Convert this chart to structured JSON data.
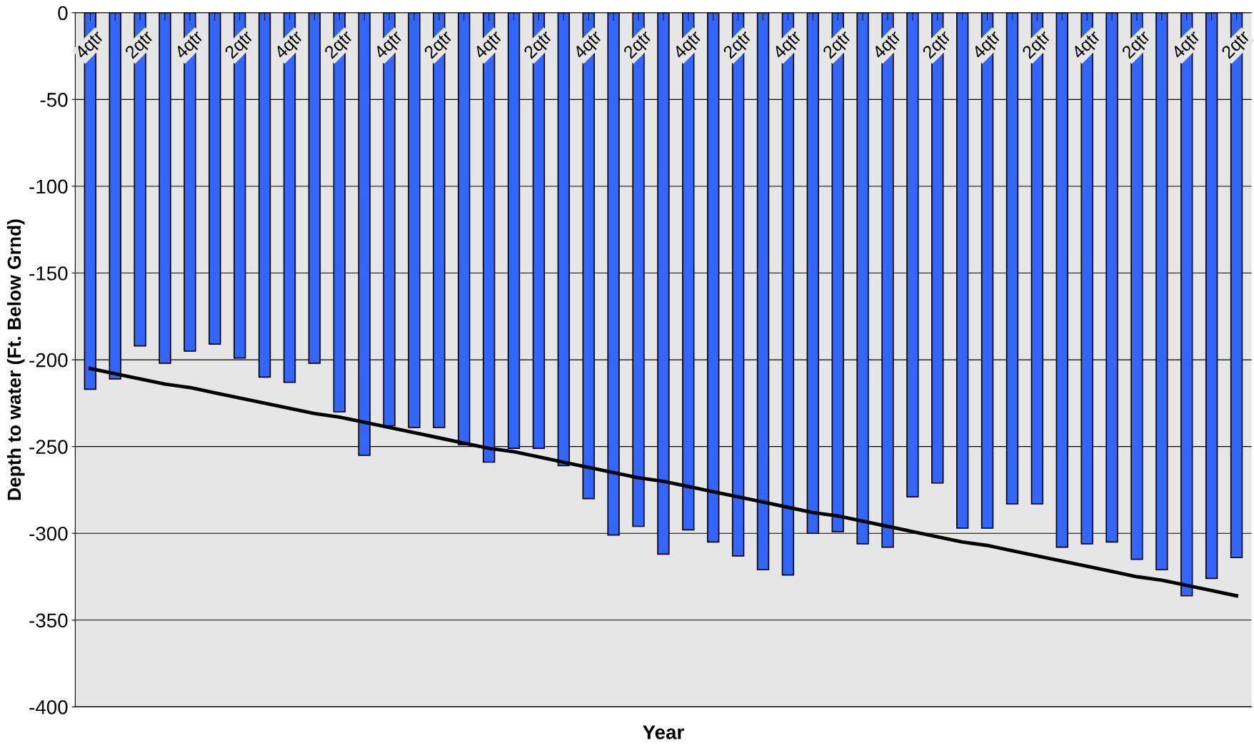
{
  "chart_data": {
    "type": "bar",
    "xlabel": "Year",
    "ylabel": "Depth to water (Ft. Below Grnd)",
    "categories": [
      "4qtr",
      null,
      "2qtr",
      null,
      "4qtr",
      null,
      "2qtr",
      null,
      "4qtr",
      null,
      "2qtr",
      null,
      "4qtr",
      null,
      "2qtr",
      null,
      "4qtr",
      null,
      "2qtr",
      null,
      "4qtr",
      null,
      "2qtr",
      null,
      "4qtr",
      null,
      "2qtr",
      null,
      "4qtr",
      null,
      "2qtr",
      null,
      "4qtr",
      null,
      "2qtr",
      null,
      "4qtr",
      null,
      "2qtr",
      null,
      "4qtr",
      null,
      "2qtr",
      null,
      "4qtr",
      null,
      "2qtr"
    ],
    "series": [
      {
        "type": "bar",
        "color": "#3366ff",
        "values": [
          -217,
          -211,
          -192,
          -202,
          -195,
          -191,
          -199,
          -210,
          -213,
          -202,
          -230,
          -255,
          -238,
          -239,
          -239,
          -249,
          -259,
          -251,
          -251,
          -261,
          -280,
          -301,
          -296,
          -312,
          -298,
          -305,
          -313,
          -321,
          -324,
          -300,
          -299,
          -306,
          -308,
          -279,
          -271,
          -297,
          -297,
          -283,
          -283,
          -308,
          -306,
          -305,
          -315,
          -321,
          -336,
          -326,
          -314
        ]
      },
      {
        "type": "line",
        "color": "#000000",
        "values": [
          -205,
          -208,
          -211,
          -214,
          -216,
          -219,
          -222,
          -225,
          -228,
          -231,
          -233,
          -236,
          -239,
          -242,
          -245,
          -248,
          -251,
          -253,
          -256,
          -259,
          -262,
          -265,
          -268,
          -270,
          -273,
          -276,
          -279,
          -282,
          -285,
          -288,
          -290,
          -293,
          -296,
          -299,
          -302,
          -305,
          -307,
          -310,
          -313,
          -316,
          -319,
          -322,
          -325,
          -327,
          -330,
          -333,
          -336
        ]
      }
    ],
    "ylim": [
      -400,
      0
    ],
    "yticks": [
      -400,
      -350,
      -300,
      -250,
      -200,
      -150,
      -100,
      -50,
      0
    ],
    "grid": "y",
    "legend": false
  }
}
